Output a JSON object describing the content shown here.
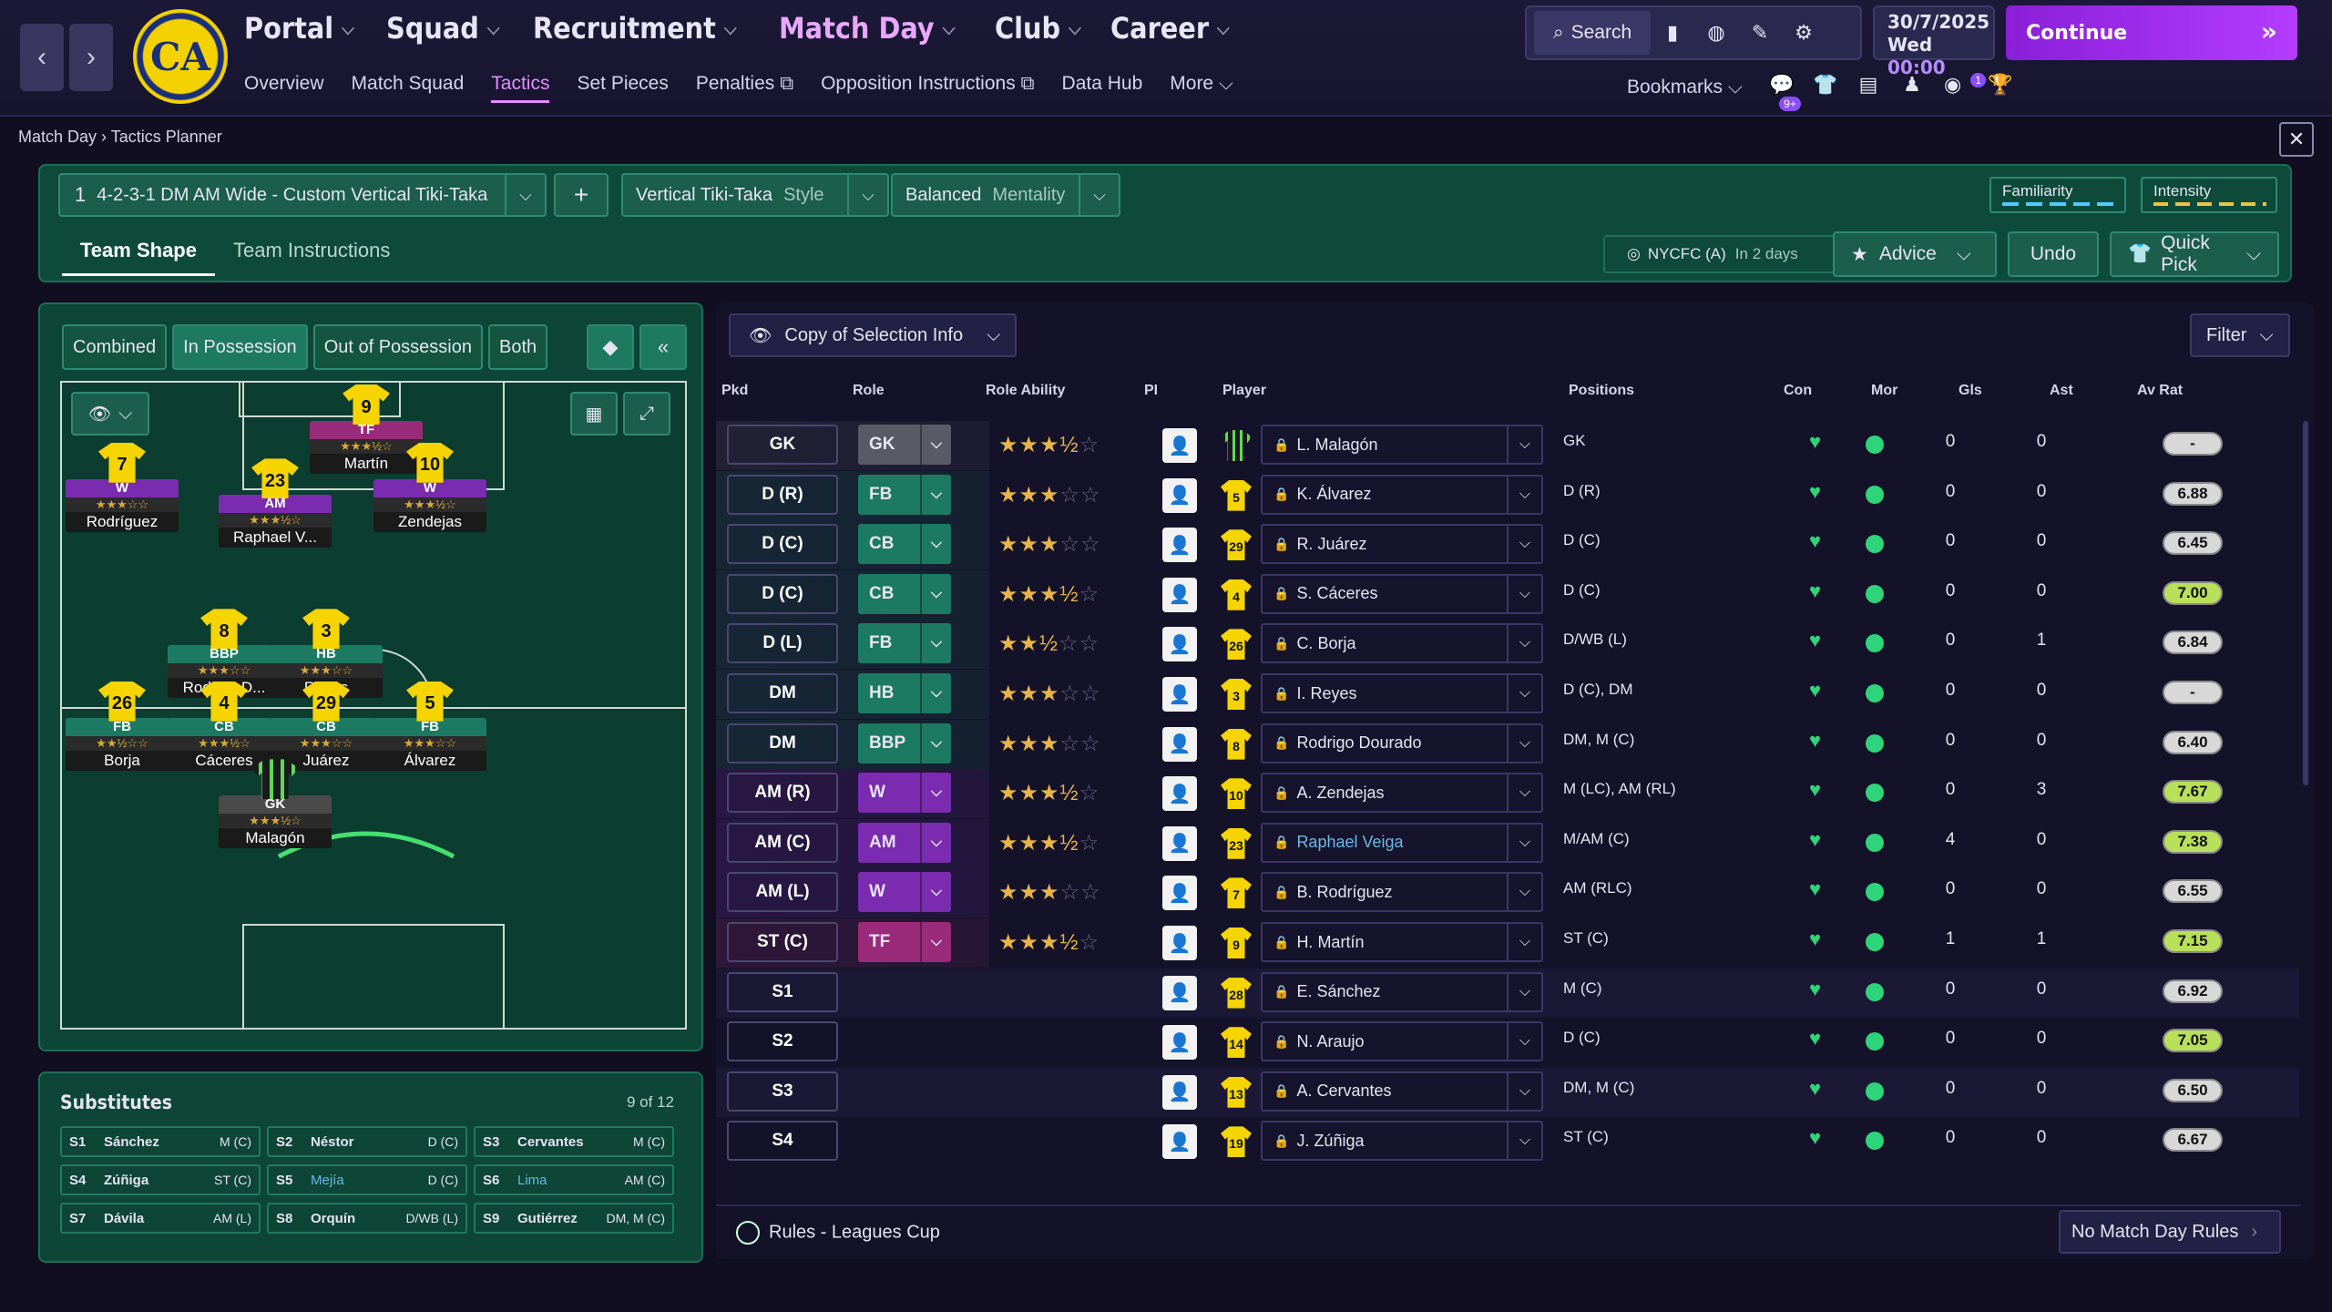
{
  "nav": {
    "back_icon": "chevron-left-icon",
    "forward_icon": "chevron-right-icon",
    "crest_text": "CA",
    "main": [
      "Portal",
      "Squad",
      "Recruitment",
      "Match Day",
      "Club",
      "Career"
    ],
    "active_main": "Match Day",
    "sub": [
      "Overview",
      "Match Squad",
      "Tactics",
      "Set Pieces",
      "Penalties",
      "Opposition Instructions",
      "Data Hub",
      "More"
    ],
    "active_sub": "Tactics",
    "search_label": "Search",
    "date": "30/7/2025",
    "day": "Wed",
    "time": "00:00",
    "continue_label": "Continue",
    "bookmarks_label": "Bookmarks",
    "inbox_badge": "9+",
    "news_badge": "1"
  },
  "breadcrumb": [
    "Match Day",
    "Tactics Planner"
  ],
  "tactic": {
    "slot": "1",
    "name": "4-2-3-1 DM AM Wide - Custom Vertical Tiki-Taka",
    "style_value": "Vertical Tiki-Taka",
    "style_label": "Style",
    "mentality_value": "Balanced",
    "mentality_label": "Mentality",
    "familiarity_label": "Familiarity",
    "intensity_label": "Intensity",
    "tabs": [
      "Team Shape",
      "Team Instructions"
    ],
    "next_match": "NYCFC (A)",
    "next_match_when": "In 2 days",
    "advice_label": "Advice",
    "undo_label": "Undo",
    "quickpick_label": "Quick Pick"
  },
  "pitch_view": {
    "tabs": [
      "Combined",
      "In Possession",
      "Out of Possession",
      "Both"
    ],
    "active_tab": "In Possession"
  },
  "pitch_players": [
    {
      "num": "9",
      "role": "TF",
      "name": "Martín",
      "stars": "★★★½☆",
      "rc": "r-tf"
    },
    {
      "num": "7",
      "role": "W",
      "name": "Rodríguez",
      "stars": "★★★☆☆",
      "rc": "r-w"
    },
    {
      "num": "23",
      "role": "AM",
      "name": "Raphael V...",
      "stars": "★★★½☆",
      "rc": "r-am"
    },
    {
      "num": "10",
      "role": "W",
      "name": "Zendejas",
      "stars": "★★★½☆",
      "rc": "r-w"
    },
    {
      "num": "8",
      "role": "BBP",
      "name": "Rodrigo D...",
      "stars": "★★★☆☆",
      "rc": "r-bbp"
    },
    {
      "num": "3",
      "role": "HB",
      "name": "Reyes",
      "stars": "★★★☆☆",
      "rc": "r-hb"
    },
    {
      "num": "26",
      "role": "FB",
      "name": "Borja",
      "stars": "★★½☆☆",
      "rc": "r-fb"
    },
    {
      "num": "4",
      "role": "CB",
      "name": "Cáceres",
      "stars": "★★★½☆",
      "rc": "r-cb"
    },
    {
      "num": "29",
      "role": "CB",
      "name": "Juárez",
      "stars": "★★★☆☆",
      "rc": "r-cb"
    },
    {
      "num": "5",
      "role": "FB",
      "name": "Álvarez",
      "stars": "★★★☆☆",
      "rc": "r-fb"
    },
    {
      "num": "",
      "role": "GK",
      "name": "Malagón",
      "stars": "★★★½☆",
      "rc": "r-gk"
    }
  ],
  "subs": {
    "title": "Substitutes",
    "count": "9 of 12",
    "items": [
      {
        "slot": "S1",
        "name": "Sánchez",
        "pos": "M (C)"
      },
      {
        "slot": "S2",
        "name": "Néstor",
        "pos": "D (C)"
      },
      {
        "slot": "S3",
        "name": "Cervantes",
        "pos": "M (C)"
      },
      {
        "slot": "S4",
        "name": "Zúñiga",
        "pos": "ST (C)"
      },
      {
        "slot": "S5",
        "name": "Mejía",
        "pos": "D (C)"
      },
      {
        "slot": "S6",
        "name": "Lima",
        "pos": "AM (C)"
      },
      {
        "slot": "S7",
        "name": "Dávila",
        "pos": "AM (L)"
      },
      {
        "slot": "S8",
        "name": "Orquín",
        "pos": "D/WB (L)"
      },
      {
        "slot": "S9",
        "name": "Gutiérrez",
        "pos": "DM, M (C)"
      }
    ]
  },
  "table": {
    "copy_label": "Copy of Selection Info",
    "filter_label": "Filter",
    "headers": {
      "pkd": "Pkd",
      "role": "Role",
      "ability": "Role Ability",
      "pi": "PI",
      "player": "Player",
      "positions": "Positions",
      "con": "Con",
      "mor": "Mor",
      "gls": "Gls",
      "ast": "Ast",
      "avrat": "Av Rat"
    },
    "rows": [
      {
        "pkd": "GK",
        "role": "GK",
        "rc": "#5a5a66",
        "stars": "★★★½",
        "empty": "☆",
        "num": "",
        "gk": true,
        "name": "L. Malagón",
        "pos": "GK",
        "gls": "0",
        "ast": "0",
        "rat": "-",
        "hi": false
      },
      {
        "pkd": "D (R)",
        "role": "FB",
        "rc": "#1c7a62",
        "stars": "★★★",
        "empty": "☆☆",
        "num": "5",
        "name": "K. Álvarez",
        "pos": "D (R)",
        "gls": "0",
        "ast": "0",
        "rat": "6.88",
        "hi": false
      },
      {
        "pkd": "D (C)",
        "role": "CB",
        "rc": "#1c7a62",
        "stars": "★★★",
        "empty": "☆☆",
        "num": "29",
        "name": "R. Juárez",
        "pos": "D (C)",
        "gls": "0",
        "ast": "0",
        "rat": "6.45",
        "hi": false
      },
      {
        "pkd": "D (C)",
        "role": "CB",
        "rc": "#1c7a62",
        "stars": "★★★½",
        "empty": "☆",
        "num": "4",
        "name": "S. Cáceres",
        "pos": "D (C)",
        "gls": "0",
        "ast": "0",
        "rat": "7.00",
        "hi": true
      },
      {
        "pkd": "D (L)",
        "role": "FB",
        "rc": "#1c7a62",
        "stars": "★★½",
        "empty": "☆☆",
        "num": "26",
        "name": "C. Borja",
        "pos": "D/WB (L)",
        "gls": "0",
        "ast": "1",
        "rat": "6.84",
        "hi": false
      },
      {
        "pkd": "DM",
        "role": "HB",
        "rc": "#1c7a62",
        "stars": "★★★",
        "empty": "☆☆",
        "num": "3",
        "name": "I. Reyes",
        "pos": "D (C), DM",
        "gls": "0",
        "ast": "0",
        "rat": "-",
        "hi": false
      },
      {
        "pkd": "DM",
        "role": "BBP",
        "rc": "#1c7a62",
        "stars": "★★★",
        "empty": "☆☆",
        "num": "8",
        "name": "Rodrigo Dourado",
        "pos": "DM, M (C)",
        "gls": "0",
        "ast": "0",
        "rat": "6.40",
        "hi": false
      },
      {
        "pkd": "AM (R)",
        "role": "W",
        "rc": "#7a2bb0",
        "stars": "★★★½",
        "empty": "☆",
        "num": "10",
        "name": "A. Zendejas",
        "pos": "M (LC), AM (RL)",
        "gls": "0",
        "ast": "3",
        "rat": "7.67",
        "hi": true
      },
      {
        "pkd": "AM (C)",
        "role": "AM",
        "rc": "#7a2bb0",
        "stars": "★★★½",
        "empty": "☆",
        "num": "23",
        "name": "Raphael Veiga",
        "link": true,
        "pos": "M/AM (C)",
        "gls": "4",
        "ast": "0",
        "rat": "7.38",
        "hi": true
      },
      {
        "pkd": "AM (L)",
        "role": "W",
        "rc": "#7a2bb0",
        "stars": "★★★",
        "empty": "☆☆",
        "num": "7",
        "name": "B. Rodríguez",
        "pos": "AM (RLC)",
        "gls": "0",
        "ast": "0",
        "rat": "6.55",
        "hi": false
      },
      {
        "pkd": "ST (C)",
        "role": "TF",
        "rc": "#9a2a7a",
        "stars": "★★★½",
        "empty": "☆",
        "num": "9",
        "name": "H. Martín",
        "pos": "ST (C)",
        "gls": "1",
        "ast": "1",
        "rat": "7.15",
        "hi": true
      },
      {
        "pkd": "S1",
        "role": "",
        "num": "28",
        "name": "E. Sánchez",
        "pos": "M (C)",
        "gls": "0",
        "ast": "0",
        "rat": "6.92",
        "hi": false
      },
      {
        "pkd": "S2",
        "role": "",
        "num": "14",
        "name": "N. Araujo",
        "pos": "D (C)",
        "gls": "0",
        "ast": "0",
        "rat": "7.05",
        "hi": true
      },
      {
        "pkd": "S3",
        "role": "",
        "num": "13",
        "name": "A. Cervantes",
        "pos": "DM, M (C)",
        "gls": "0",
        "ast": "0",
        "rat": "6.50",
        "hi": false
      },
      {
        "pkd": "S4",
        "role": "",
        "num": "19",
        "name": "J. Zúñiga",
        "pos": "ST (C)",
        "gls": "0",
        "ast": "0",
        "rat": "6.67",
        "hi": false
      }
    ]
  },
  "rules": {
    "label": "Rules - Leagues Cup",
    "no_rules_label": "No Match Day Rules"
  }
}
